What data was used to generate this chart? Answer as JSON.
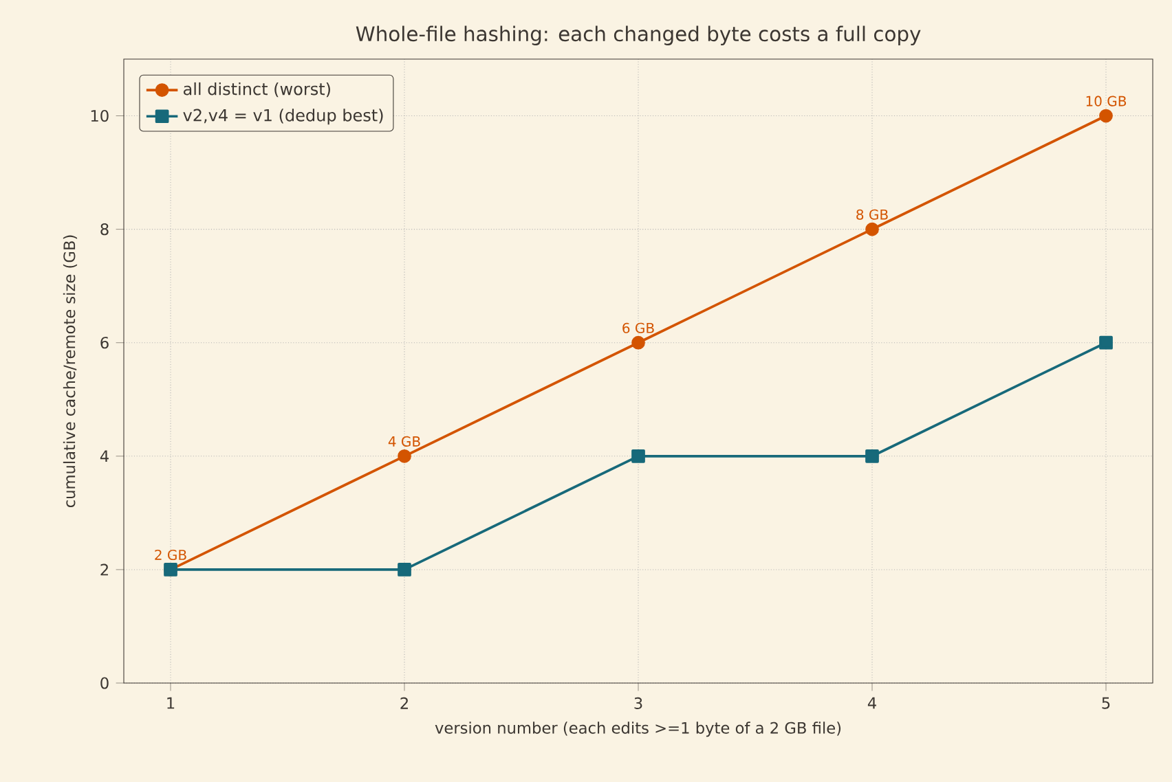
{
  "chart_data": {
    "type": "line",
    "title": "Whole-file hashing: each changed byte costs a full copy",
    "xlabel": "version number (each edits >=1 byte of a 2 GB file)",
    "ylabel": "cumulative cache/remote size (GB)",
    "x": [
      1,
      2,
      3,
      4,
      5
    ],
    "series": [
      {
        "name": "all distinct (worst)",
        "color": "#d35400",
        "marker": "circle",
        "values": [
          2,
          4,
          6,
          8,
          10
        ],
        "value_labels": [
          "2 GB",
          "4 GB",
          "6 GB",
          "8 GB",
          "10 GB"
        ]
      },
      {
        "name": "v2,v4 = v1 (dedup best)",
        "color": "#17697a",
        "marker": "square",
        "values": [
          2,
          2,
          4,
          4,
          6
        ]
      }
    ],
    "xlim": [
      0.8,
      5.2
    ],
    "ylim": [
      0,
      11
    ],
    "xticks": [
      1,
      2,
      3,
      4,
      5
    ],
    "yticks": [
      0,
      2,
      4,
      6,
      8,
      10
    ],
    "grid": true,
    "legend": "top left",
    "line_style": "solid"
  }
}
